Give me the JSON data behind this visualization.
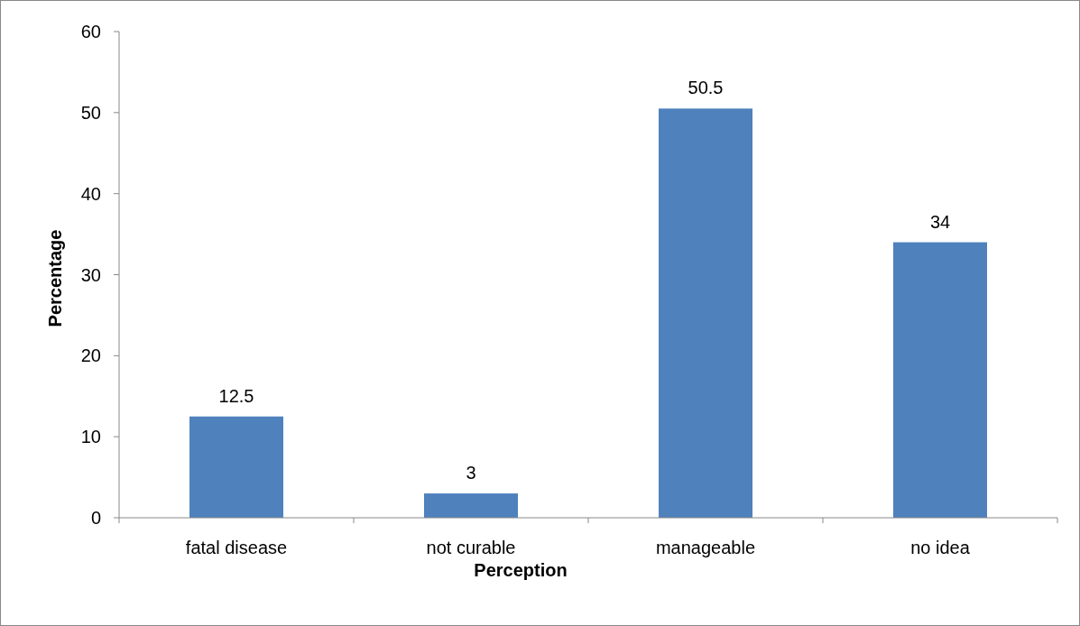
{
  "chart_data": {
    "type": "bar",
    "xlabel": "Perception",
    "ylabel": "Percentage",
    "categories": [
      "fatal disease",
      "not curable",
      "manageable",
      "no idea"
    ],
    "values": [
      12.5,
      3,
      50.5,
      34
    ],
    "color": "#4f81bd",
    "ylim": [
      0,
      60
    ],
    "yticks": [
      0,
      10,
      20,
      30,
      40,
      50,
      60
    ],
    "grid": false,
    "data_labels": true
  }
}
